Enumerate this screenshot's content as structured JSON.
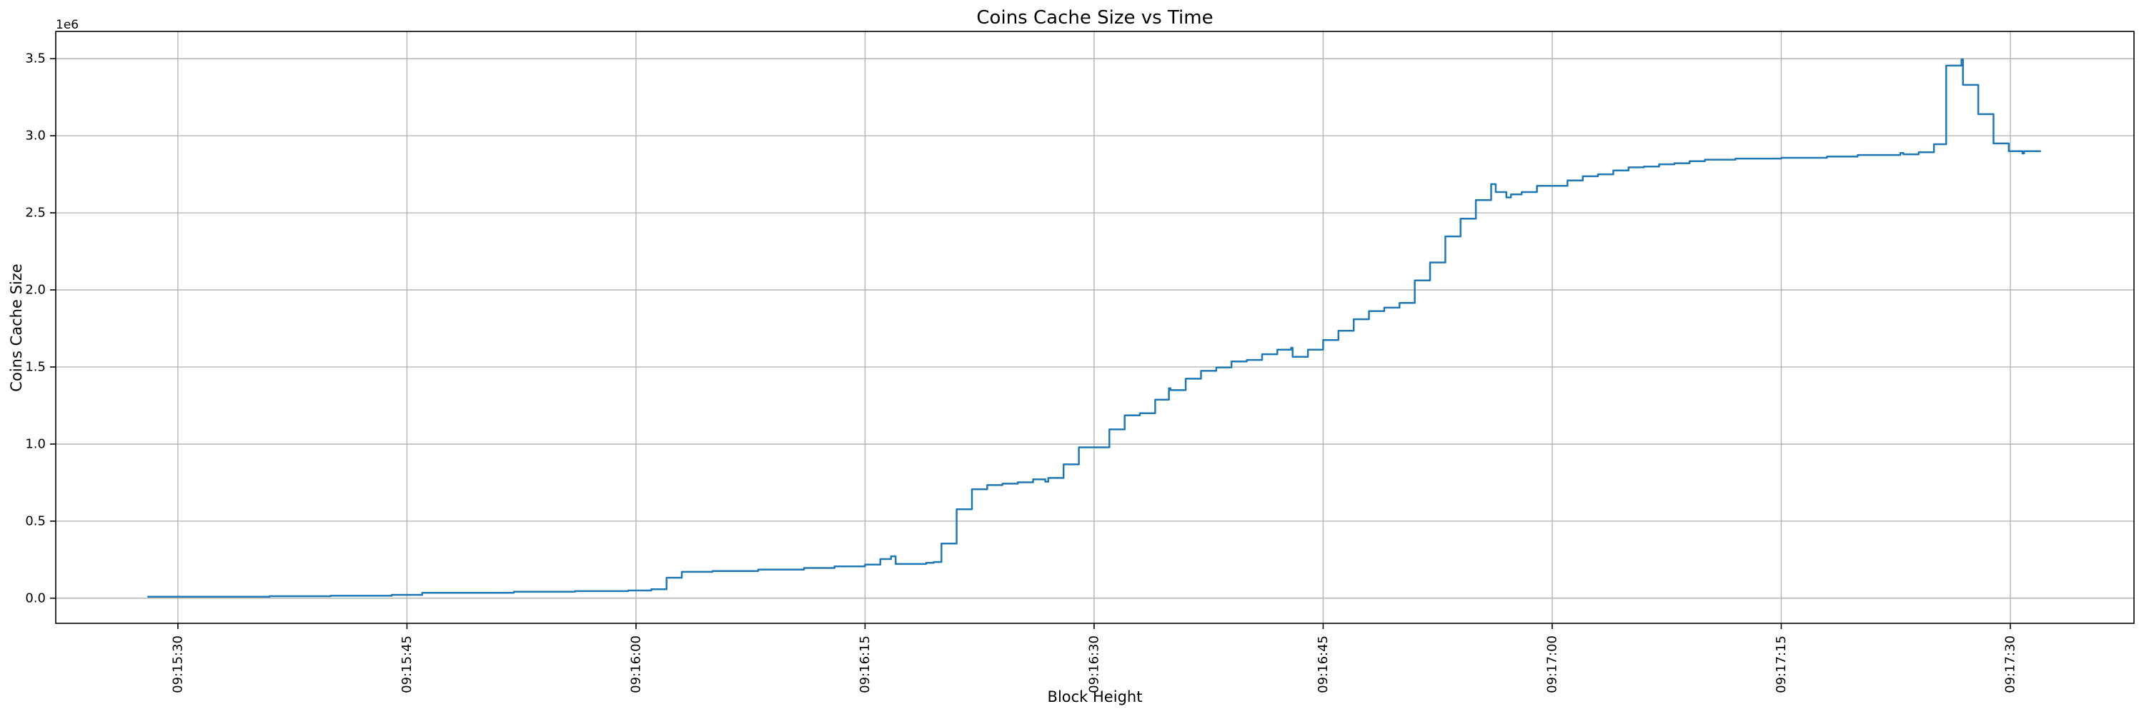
{
  "figure": {
    "title": "Coins Cache Size vs Time",
    "xlabel": "Block Height",
    "ylabel": "Coins Cache Size",
    "y_offset_label": "1e6"
  },
  "colors": {
    "line": "#1f77b4",
    "grid": "#b0b0b0",
    "spine": "#000000",
    "text": "#000000",
    "background": "#ffffff"
  },
  "chart_data": {
    "type": "line",
    "step_mode": "post",
    "title": "Coins Cache Size vs Time",
    "xlabel": "Block Height",
    "ylabel": "Coins Cache Size",
    "grid": true,
    "legend": false,
    "x_base_time": "09:15:00",
    "x_unit": "seconds after 09:15:00",
    "xlim": [
      22.0,
      158.1
    ],
    "ylim": [
      -163000,
      3677000
    ],
    "y_multiplier_label": "1e6",
    "xticks": {
      "seconds": [
        30,
        45,
        60,
        75,
        90,
        105,
        120,
        135,
        150
      ],
      "labels": [
        "09:15:30",
        "09:15:45",
        "09:16:00",
        "09:16:15",
        "09:16:30",
        "09:16:45",
        "09:17:00",
        "09:17:15",
        "09:17:30"
      ]
    },
    "yticks": {
      "values": [
        0,
        500000,
        1000000,
        1500000,
        2000000,
        2500000,
        3000000,
        3500000
      ],
      "labels": [
        "0.0",
        "0.5",
        "1.0",
        "1.5",
        "2.0",
        "2.5",
        "3.0",
        "3.5"
      ]
    },
    "series": [
      {
        "name": "coins_cache_size",
        "color": "#1f77b4",
        "points": [
          [
            28.0,
            10000
          ],
          [
            36.0,
            13000
          ],
          [
            40.0,
            16000
          ],
          [
            44.0,
            22000
          ],
          [
            46.0,
            35000
          ],
          [
            52.0,
            42000
          ],
          [
            56.0,
            46000
          ],
          [
            59.5,
            50000
          ],
          [
            61.0,
            58000
          ],
          [
            62.0,
            133000
          ],
          [
            63.0,
            171000
          ],
          [
            65.0,
            176000
          ],
          [
            68.0,
            186000
          ],
          [
            71.0,
            196000
          ],
          [
            73.0,
            206000
          ],
          [
            75.0,
            218000
          ],
          [
            76.0,
            254000
          ],
          [
            76.7,
            272000
          ],
          [
            77.0,
            222000
          ],
          [
            79.0,
            230000
          ],
          [
            79.5,
            235000
          ],
          [
            80.0,
            355000
          ],
          [
            81.0,
            577000
          ],
          [
            82.0,
            707000
          ],
          [
            83.0,
            734000
          ],
          [
            84.0,
            743000
          ],
          [
            85.0,
            752000
          ],
          [
            86.0,
            771000
          ],
          [
            86.8,
            756000
          ],
          [
            87.0,
            780000
          ],
          [
            88.0,
            868000
          ],
          [
            89.0,
            979000
          ],
          [
            91.0,
            1095000
          ],
          [
            92.0,
            1186000
          ],
          [
            93.0,
            1200000
          ],
          [
            94.0,
            1288000
          ],
          [
            94.9,
            1362000
          ],
          [
            95.0,
            1350000
          ],
          [
            96.0,
            1424000
          ],
          [
            97.0,
            1475000
          ],
          [
            98.0,
            1497000
          ],
          [
            99.0,
            1536000
          ],
          [
            100.0,
            1546000
          ],
          [
            101.0,
            1583000
          ],
          [
            102.0,
            1612000
          ],
          [
            102.9,
            1625000
          ],
          [
            103.0,
            1566000
          ],
          [
            104.0,
            1612000
          ],
          [
            105.0,
            1675000
          ],
          [
            106.0,
            1735000
          ],
          [
            107.0,
            1810000
          ],
          [
            108.0,
            1862000
          ],
          [
            109.0,
            1885000
          ],
          [
            110.0,
            1916000
          ],
          [
            111.0,
            2062000
          ],
          [
            112.0,
            2178000
          ],
          [
            113.0,
            2347000
          ],
          [
            114.0,
            2462000
          ],
          [
            115.0,
            2583000
          ],
          [
            116.0,
            2686000
          ],
          [
            116.3,
            2635000
          ],
          [
            117.0,
            2600000
          ],
          [
            117.3,
            2620000
          ],
          [
            118.0,
            2635000
          ],
          [
            119.0,
            2675000
          ],
          [
            121.0,
            2710000
          ],
          [
            122.0,
            2737000
          ],
          [
            123.0,
            2750000
          ],
          [
            124.0,
            2775000
          ],
          [
            125.0,
            2795000
          ],
          [
            126.0,
            2800000
          ],
          [
            127.0,
            2815000
          ],
          [
            128.0,
            2822000
          ],
          [
            129.0,
            2835000
          ],
          [
            130.0,
            2845000
          ],
          [
            132.0,
            2852000
          ],
          [
            135.0,
            2857000
          ],
          [
            138.0,
            2865000
          ],
          [
            140.0,
            2875000
          ],
          [
            142.8,
            2888000
          ],
          [
            143.0,
            2880000
          ],
          [
            144.0,
            2893000
          ],
          [
            145.0,
            2945000
          ],
          [
            145.8,
            3455000
          ],
          [
            146.8,
            3497000
          ],
          [
            146.9,
            3330000
          ],
          [
            147.9,
            3140000
          ],
          [
            148.9,
            2950000
          ],
          [
            149.9,
            2900000
          ],
          [
            150.8,
            2885000
          ],
          [
            150.9,
            2900000
          ],
          [
            152.0,
            2900000
          ]
        ]
      }
    ]
  }
}
